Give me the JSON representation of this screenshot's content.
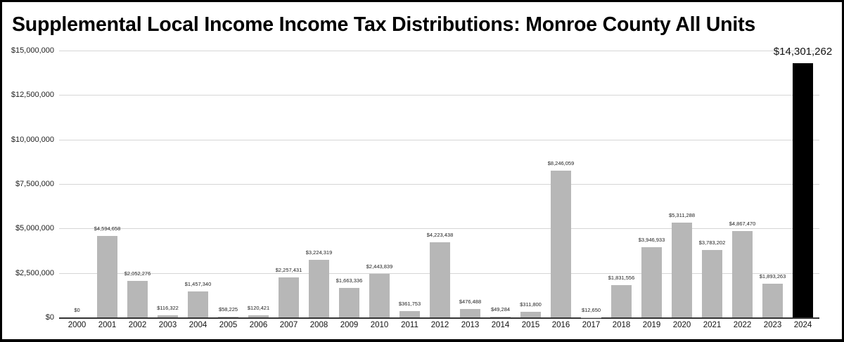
{
  "chart_data": {
    "type": "bar",
    "title": "Supplemental Local Income Income Tax Distributions: Monroe County All Units",
    "xlabel": "",
    "ylabel": "",
    "ylim": [
      0,
      15000000
    ],
    "grid": true,
    "legend": "none",
    "yticks": [
      "$0",
      "$2,500,000",
      "$5,000,000",
      "$7,500,000",
      "$10,000,000",
      "$12,500,000",
      "$15,000,000"
    ],
    "ytick_values": [
      0,
      2500000,
      5000000,
      7500000,
      10000000,
      12500000,
      15000000
    ],
    "categories": [
      "2000",
      "2001",
      "2002",
      "2003",
      "2004",
      "2005",
      "2006",
      "2007",
      "2008",
      "2009",
      "2010",
      "2011",
      "2012",
      "2013",
      "2014",
      "2015",
      "2016",
      "2017",
      "2018",
      "2019",
      "2020",
      "2021",
      "2022",
      "2023",
      "2024"
    ],
    "values": [
      0,
      4594658,
      2052276,
      116322,
      1457340,
      58225,
      120421,
      2257431,
      3224319,
      1663336,
      2443839,
      361753,
      4223438,
      476488,
      49284,
      311800,
      8246059,
      12650,
      1831556,
      3946933,
      5311288,
      3783202,
      4867470,
      1893263,
      14301262
    ],
    "labels": [
      "$0",
      "$4,594,658",
      "$2,052,276",
      "$116,322",
      "$1,457,340",
      "$58,225",
      "$120,421",
      "$2,257,431",
      "$3,224,319",
      "$1,663,336",
      "$2,443,839",
      "$361,753",
      "$4,223,438",
      "$476,488",
      "$49,284",
      "$311,800",
      "$8,246,059",
      "$12,650",
      "$1,831,556",
      "$3,946,933",
      "$5,311,288",
      "$3,783,202",
      "$4,867,470",
      "$1,893,263",
      "$14,301,262"
    ],
    "highlight_index": 24,
    "colors": {
      "bar": "#b7b7b7",
      "highlight": "#000000",
      "grid": "#d6d6d6"
    }
  }
}
